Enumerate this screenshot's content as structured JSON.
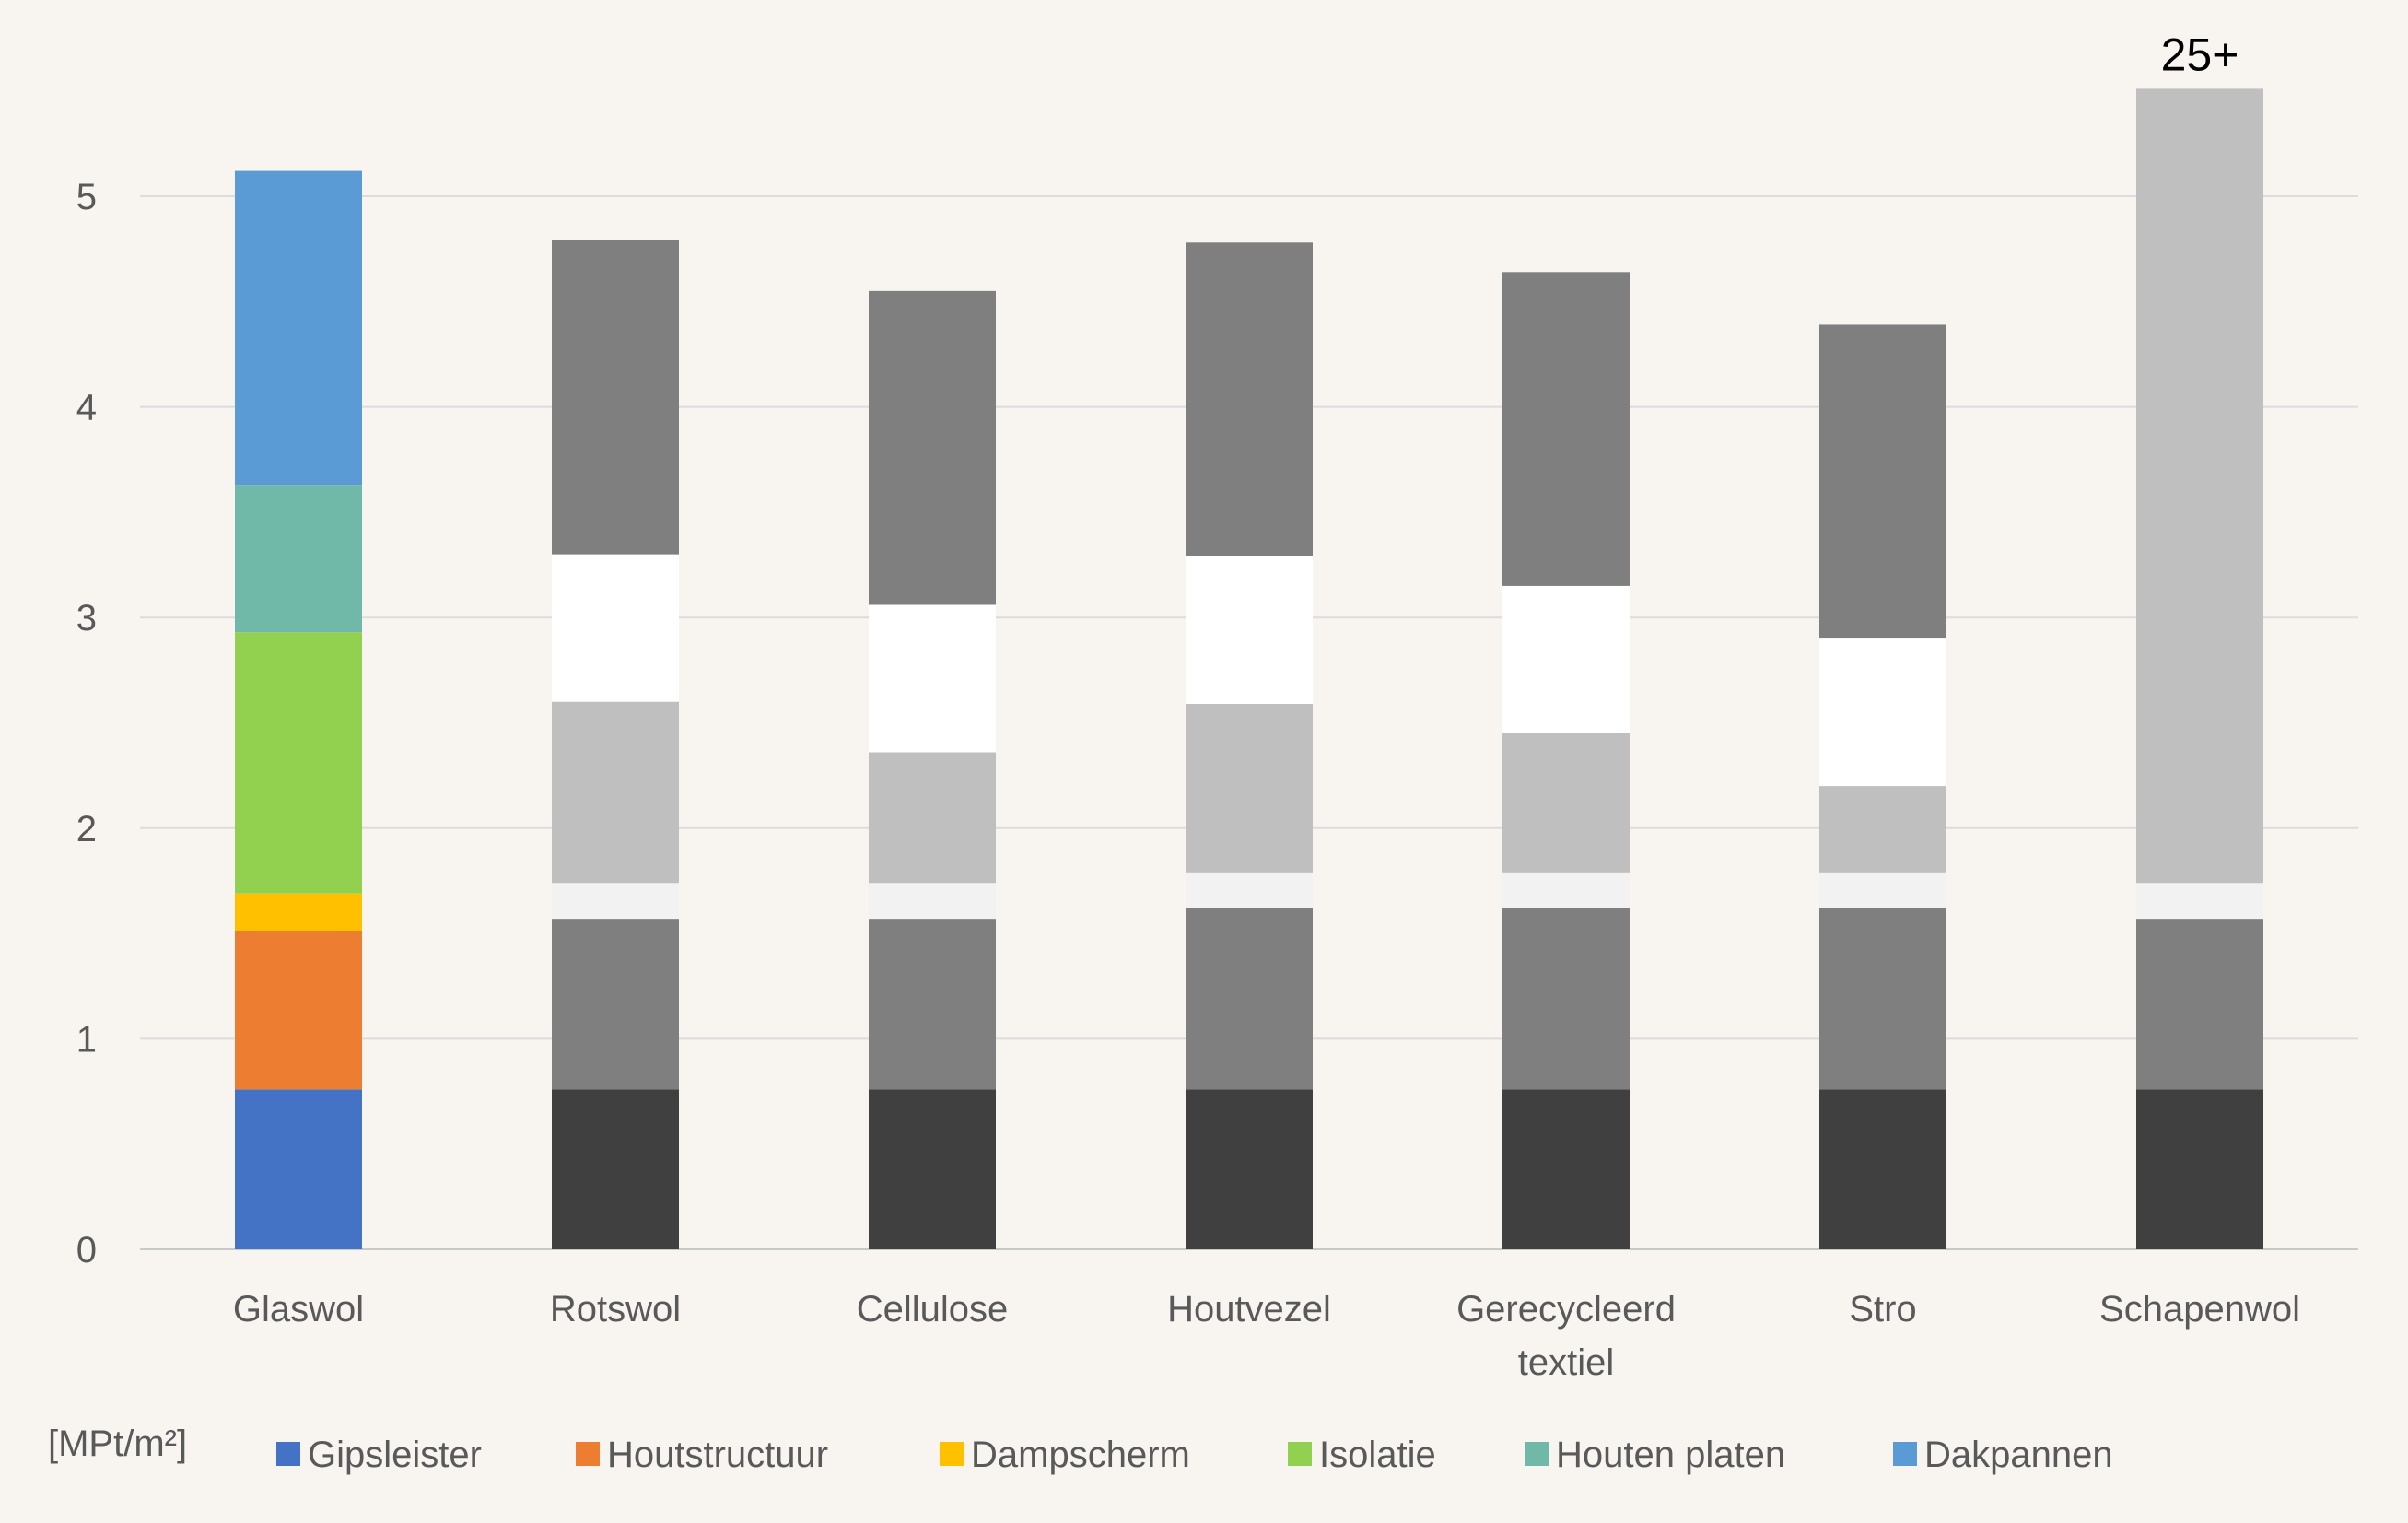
{
  "chart_data": {
    "type": "bar",
    "stacked": true,
    "categories": [
      "Glaswol",
      "Rotswol",
      "Cellulose",
      "Houtvezel",
      "Gerecycleerd textiel",
      "Stro",
      "Schapenwol"
    ],
    "ylim": [
      0,
      5.5
    ],
    "yticks": [
      0,
      1,
      2,
      3,
      4,
      5
    ],
    "ylabel": "[MPt/m²]",
    "grid": true,
    "legend_position": "bottom",
    "series": [
      {
        "name": "Gipsleister",
        "color": "#4472c4",
        "other_color": "#404040",
        "values": [
          0.76,
          0.76,
          0.76,
          0.76,
          0.76,
          0.76,
          0.76
        ]
      },
      {
        "name": "Houtstructuur",
        "color": "#ed7d31",
        "other_color": "#7f7f7f",
        "values": [
          0.75,
          0.81,
          0.81,
          0.86,
          0.86,
          0.86,
          0.81
        ]
      },
      {
        "name": "Dampscherm",
        "color": "#ffc000",
        "other_color": "#f2f2f2",
        "values": [
          0.18,
          0.17,
          0.17,
          0.17,
          0.17,
          0.17,
          0.17
        ]
      },
      {
        "name": "Isolatie",
        "color": "#92d050",
        "other_color": "#bfbfbf",
        "values": [
          1.24,
          0.86,
          0.62,
          0.8,
          0.66,
          0.41,
          3.77
        ]
      },
      {
        "name": "Houten platen",
        "color": "#70b8a8",
        "other_color": "#ffffff",
        "values": [
          0.7,
          0.7,
          0.7,
          0.7,
          0.7,
          0.7,
          0
        ]
      },
      {
        "name": "Dakpannen",
        "color": "#5b9bd5",
        "other_color": "#7f7f7f",
        "values": [
          1.49,
          1.49,
          1.49,
          1.49,
          1.49,
          1.49,
          0
        ]
      }
    ],
    "annotations": [
      {
        "category": "Schapenwol",
        "text": "25+"
      }
    ]
  }
}
